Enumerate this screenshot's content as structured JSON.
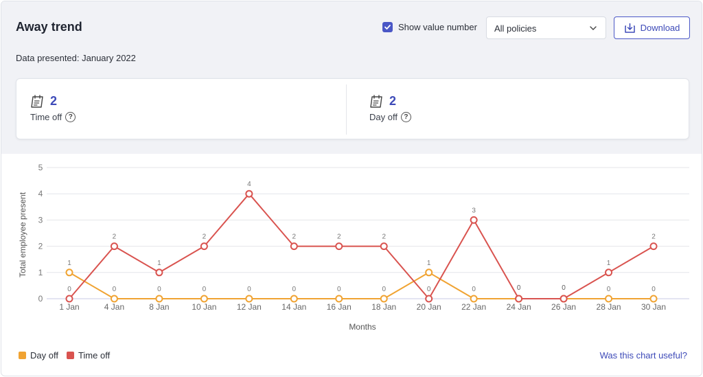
{
  "header": {
    "title": "Away trend",
    "show_value_label": "Show value number",
    "show_value_checked": true,
    "policy_select": "All policies",
    "download_label": "Download"
  },
  "subtitle": "Data presented: January 2022",
  "stats": [
    {
      "value": "2",
      "label": "Time off"
    },
    {
      "value": "2",
      "label": "Day off"
    }
  ],
  "colors": {
    "accent": "#4a57c6",
    "time_off": "#d9534f",
    "day_off": "#f0a332"
  },
  "footer": {
    "useful_link": "Was this chart useful?"
  },
  "chart_data": {
    "type": "line",
    "categories": [
      "1 Jan",
      "4 Jan",
      "8 Jan",
      "10 Jan",
      "12 Jan",
      "14 Jan",
      "16 Jan",
      "18 Jan",
      "20 Jan",
      "22 Jan",
      "24 Jan",
      "26 Jan",
      "28 Jan",
      "30 Jan"
    ],
    "series": [
      {
        "name": "Time off",
        "color": "#d9534f",
        "values": [
          0,
          2,
          1,
          2,
          4,
          2,
          2,
          2,
          0,
          3,
          0,
          0,
          1,
          2
        ]
      },
      {
        "name": "Day off",
        "color": "#f0a332",
        "values": [
          1,
          0,
          0,
          0,
          0,
          0,
          0,
          0,
          1,
          0,
          0,
          0,
          0,
          0
        ]
      }
    ],
    "xlabel": "Months",
    "ylabel": "Total employee present",
    "ylim": [
      0,
      5
    ],
    "yticks": [
      0,
      1,
      2,
      3,
      4,
      5
    ],
    "grid": true,
    "show_values": true,
    "legend": "bottom-left"
  }
}
